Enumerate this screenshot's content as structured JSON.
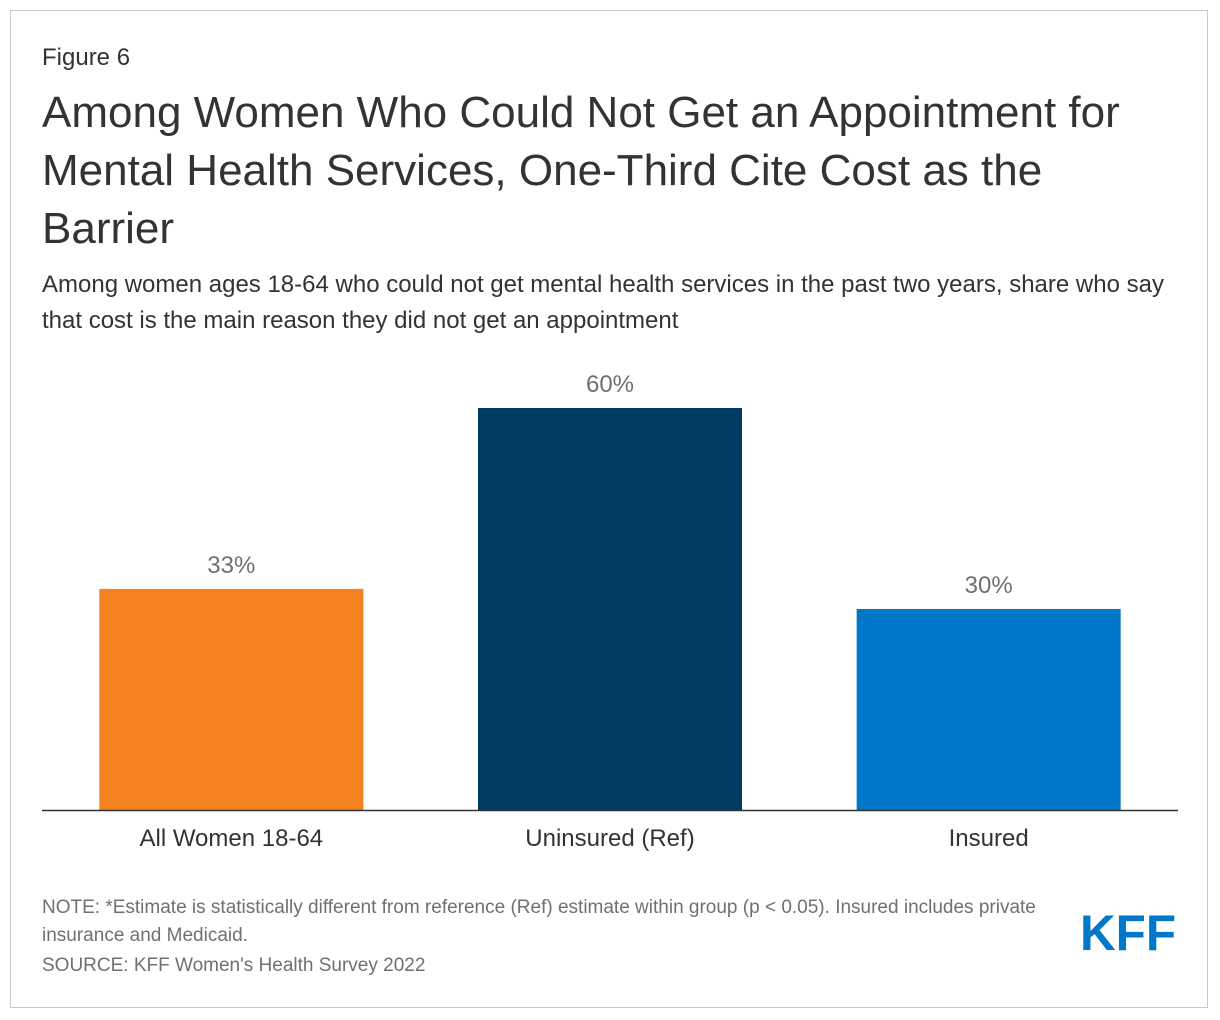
{
  "figure_label": "Figure 6",
  "title": "Among Women Who Could Not Get an Appointment for Mental Health Services, One-Third Cite Cost as the Barrier",
  "subtitle": "Among women ages 18-64 who could not get mental health services in the past two years, share who say that cost is the main reason they did not get an appointment",
  "note": "NOTE: *Estimate is statistically different from reference (Ref) estimate within group (p < 0.05). Insured includes private insurance and Medicaid.",
  "source": "SOURCE: KFF Women's Health Survey 2022",
  "logo_text": "KFF",
  "colors": {
    "text": "#333333",
    "muted": "#707070",
    "axis": "#333333",
    "logo": "#0077c8"
  },
  "chart_data": {
    "type": "bar",
    "title": "Among Women Who Could Not Get an Appointment for Mental Health Services, One-Third Cite Cost as the Barrier",
    "xlabel": "",
    "ylabel": "",
    "ylim": [
      0,
      60
    ],
    "grid": false,
    "categories": [
      "All Women 18-64",
      "Uninsured (Ref)",
      "Insured"
    ],
    "values": [
      33,
      60,
      30
    ],
    "value_labels": [
      "33%",
      "60%",
      "30%"
    ],
    "bar_colors": [
      "#f58220",
      "#003b62",
      "#0077c8"
    ]
  }
}
